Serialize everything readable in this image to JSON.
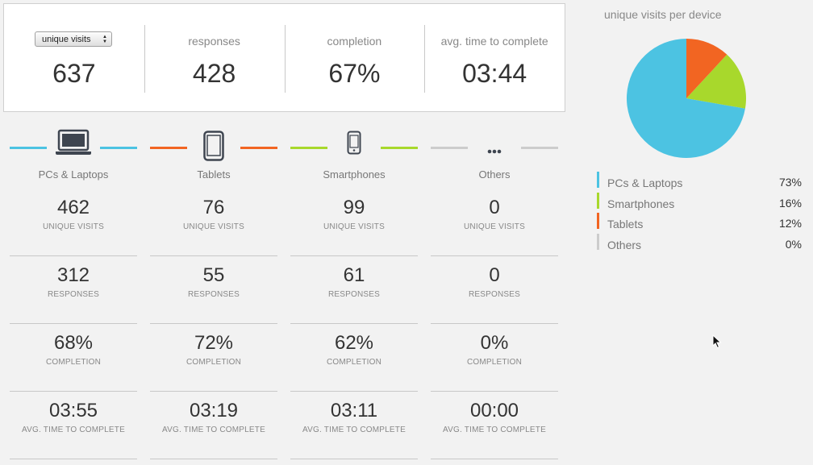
{
  "summary": {
    "metric_select": "unique visits",
    "unique_visits": "637",
    "responses_label": "responses",
    "responses": "428",
    "completion_label": "completion",
    "completion": "67%",
    "avg_time_label": "avg. time to complete",
    "avg_time": "03:44"
  },
  "stat_labels": {
    "unique_visits": "UNIQUE VISITS",
    "responses": "RESPONSES",
    "completion": "COMPLETION",
    "avg_time": "AVG. TIME TO COMPLETE"
  },
  "devices": [
    {
      "name": "PCs & Laptops",
      "icon": "laptop-icon",
      "color": "#4cc3e2",
      "unique_visits": "462",
      "responses": "312",
      "completion": "68%",
      "avg_time": "03:55"
    },
    {
      "name": "Tablets",
      "icon": "tablet-icon",
      "color": "#f26522",
      "unique_visits": "76",
      "responses": "55",
      "completion": "72%",
      "avg_time": "03:19"
    },
    {
      "name": "Smartphones",
      "icon": "smartphone-icon",
      "color": "#a8d82c",
      "unique_visits": "99",
      "responses": "61",
      "completion": "62%",
      "avg_time": "03:11"
    },
    {
      "name": "Others",
      "icon": "more-icon",
      "color": "#cccccc",
      "unique_visits": "0",
      "responses": "0",
      "completion": "0%",
      "avg_time": "00:00"
    }
  ],
  "chart_data": {
    "type": "pie",
    "title": "unique visits per device",
    "categories": [
      "PCs & Laptops",
      "Smartphones",
      "Tablets",
      "Others"
    ],
    "values": [
      73,
      16,
      12,
      0
    ],
    "labels": [
      "73%",
      "16%",
      "12%",
      "0%"
    ],
    "colors": [
      "#4cc3e2",
      "#a8d82c",
      "#f26522",
      "#cccccc"
    ],
    "legend": "bottom"
  }
}
